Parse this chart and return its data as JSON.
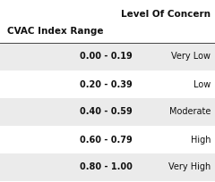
{
  "header_col2": "Level Of Concern",
  "header_col1": "CVAC Index Range",
  "rows": [
    {
      "range": "0.00 - 0.19",
      "level": "Very Low",
      "shaded": true
    },
    {
      "range": "0.20 - 0.39",
      "level": "Low",
      "shaded": false
    },
    {
      "range": "0.40 - 0.59",
      "level": "Moderate",
      "shaded": true
    },
    {
      "range": "0.60 - 0.79",
      "level": "High",
      "shaded": false
    },
    {
      "range": "0.80 - 1.00",
      "level": "Very High",
      "shaded": true
    }
  ],
  "bg_color": "#ffffff",
  "shaded_color": "#ebebeb",
  "header_line_color": "#444444",
  "title_fontsize": 7.5,
  "header_fontsize": 7.5,
  "cell_fontsize": 7.0
}
